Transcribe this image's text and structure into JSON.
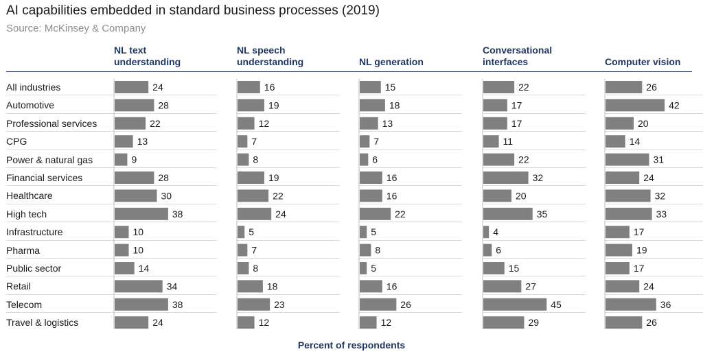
{
  "title": "AI capabilities embedded in standard business processes (2019)",
  "source": "Source: McKinsey & Company",
  "footer": "Percent of respondents",
  "colors": {
    "bar": "#808080",
    "header": "#1f3864",
    "separator": "#d9d9d9"
  },
  "chart_data": {
    "type": "bar",
    "orientation": "horizontal",
    "layout": "small-multiples",
    "value_label": "Percent of respondents",
    "categories": [
      "All industries",
      "Automotive",
      "Professional services",
      "CPG",
      "Power & natural gas",
      "Financial services",
      "Healthcare",
      "High tech",
      "Infrastructure",
      "Pharma",
      "Public sector",
      "Retail",
      "Telecom",
      "Travel & logistics"
    ],
    "series": [
      {
        "name": "NL text understanding",
        "header_lines": [
          "NL text",
          "understanding"
        ],
        "values": [
          24,
          28,
          22,
          13,
          9,
          28,
          30,
          38,
          10,
          10,
          14,
          34,
          38,
          24
        ]
      },
      {
        "name": "NL speech understanding",
        "header_lines": [
          "NL speech",
          "understanding"
        ],
        "values": [
          16,
          19,
          12,
          7,
          8,
          19,
          22,
          24,
          5,
          7,
          8,
          18,
          23,
          12
        ]
      },
      {
        "name": "NL generation",
        "header_lines": [
          "NL generation"
        ],
        "values": [
          15,
          18,
          13,
          7,
          6,
          16,
          16,
          22,
          5,
          8,
          5,
          16,
          26,
          12
        ]
      },
      {
        "name": "Conversational interfaces",
        "header_lines": [
          "Conversational",
          "interfaces"
        ],
        "values": [
          22,
          17,
          17,
          11,
          22,
          32,
          20,
          35,
          4,
          6,
          15,
          27,
          45,
          29
        ]
      },
      {
        "name": "Computer vision",
        "header_lines": [
          "Computer vision"
        ],
        "values": [
          26,
          42,
          20,
          14,
          31,
          24,
          32,
          33,
          17,
          19,
          17,
          24,
          36,
          26
        ]
      }
    ]
  }
}
